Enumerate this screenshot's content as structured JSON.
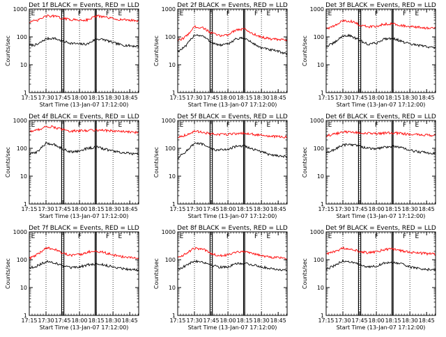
{
  "figure": {
    "background": "#ffffff",
    "axis_color": "#000000",
    "events_color": "#000000",
    "lld_color": "#ff0000"
  },
  "chart_data": [
    {
      "type": "line",
      "title": "Det 1f BLACK = Events, RED = LLD",
      "xlabel": "Start Time (13-Jan-07 17:12:00)",
      "ylabel": "Counts/sec",
      "y_scale": "log",
      "ylim": [
        1,
        1000
      ],
      "y_ticks": [
        "1",
        "10",
        "100",
        "1000"
      ],
      "x_range_min": [
        3,
        101
      ],
      "x_ticks": [
        "17:15",
        "17:30",
        "17:45",
        "18:00",
        "18:15",
        "18:30",
        "18:45"
      ],
      "x_tick_min": [
        3,
        18,
        33,
        48,
        63,
        78,
        93
      ],
      "grid": false,
      "markers": [
        {
          "label": "E",
          "t": 4
        },
        {
          "label": "F",
          "t": 46
        },
        {
          "label": "F",
          "t": 71
        },
        {
          "label": "E",
          "t": 82
        }
      ],
      "dotted_lines_min": [
        18,
        33,
        48,
        63,
        78
      ],
      "solid_pair_lines_min": [
        [
          32,
          34
        ],
        [
          62,
          63
        ]
      ],
      "x_min": [
        3,
        10,
        18,
        25,
        33,
        40,
        48,
        55,
        63,
        70,
        78,
        85,
        93,
        101
      ],
      "series": [
        {
          "name": "Events",
          "color": "#000000",
          "values": [
            50,
            52,
            85,
            90,
            70,
            60,
            55,
            55,
            85,
            80,
            62,
            52,
            48,
            46
          ]
        },
        {
          "name": "LLD",
          "color": "#ff0000",
          "values": [
            350,
            380,
            560,
            560,
            460,
            420,
            400,
            410,
            560,
            520,
            450,
            420,
            400,
            380
          ]
        }
      ]
    },
    {
      "type": "line",
      "title": "Det 2f BLACK = Events, RED = LLD",
      "xlabel": "Start Time (13-Jan-07 17:12:00)",
      "ylabel": "Counts/sec",
      "y_scale": "log",
      "ylim": [
        1,
        1000
      ],
      "y_ticks": [
        "1",
        "10",
        "100",
        "1000"
      ],
      "x_range_min": [
        3,
        101
      ],
      "x_ticks": [
        "17:15",
        "17:30",
        "17:45",
        "18:00",
        "18:15",
        "18:30",
        "18:45"
      ],
      "x_tick_min": [
        3,
        18,
        33,
        48,
        63,
        78,
        93
      ],
      "grid": false,
      "markers": [
        {
          "label": "E",
          "t": 4
        },
        {
          "label": "F",
          "t": 46
        },
        {
          "label": "F",
          "t": 71
        },
        {
          "label": "E",
          "t": 82
        }
      ],
      "dotted_lines_min": [
        18,
        33,
        48,
        63,
        78
      ],
      "solid_pair_lines_min": [
        [
          32,
          34
        ],
        [
          62,
          63
        ]
      ],
      "x_min": [
        3,
        10,
        18,
        25,
        33,
        40,
        48,
        55,
        63,
        70,
        78,
        85,
        93,
        101
      ],
      "series": [
        {
          "name": "Events",
          "color": "#000000",
          "values": [
            30,
            45,
            120,
            110,
            65,
            50,
            55,
            85,
            90,
            60,
            40,
            35,
            30,
            25
          ]
        },
        {
          "name": "LLD",
          "color": "#ff0000",
          "values": [
            70,
            100,
            230,
            220,
            140,
            110,
            120,
            180,
            190,
            130,
            100,
            85,
            80,
            75
          ]
        }
      ]
    },
    {
      "type": "line",
      "title": "Det 3f BLACK = Events, RED = LLD",
      "xlabel": "Start Time (13-Jan-07 17:12:00)",
      "ylabel": "Counts/sec",
      "y_scale": "log",
      "ylim": [
        1,
        1000
      ],
      "y_ticks": [
        "1",
        "10",
        "100",
        "1000"
      ],
      "x_range_min": [
        3,
        101
      ],
      "x_ticks": [
        "17:15",
        "17:30",
        "17:45",
        "18:00",
        "18:15",
        "18:30",
        "18:45"
      ],
      "x_tick_min": [
        3,
        18,
        33,
        48,
        63,
        78,
        93
      ],
      "grid": false,
      "markers": [
        {
          "label": "E",
          "t": 4
        },
        {
          "label": "F",
          "t": 46
        },
        {
          "label": "F",
          "t": 71
        },
        {
          "label": "E",
          "t": 82
        }
      ],
      "dotted_lines_min": [
        18,
        33,
        48,
        63,
        78
      ],
      "solid_pair_lines_min": [
        [
          32,
          34
        ],
        [
          62,
          63
        ]
      ],
      "x_min": [
        3,
        10,
        18,
        25,
        33,
        40,
        48,
        55,
        63,
        70,
        78,
        85,
        93,
        101
      ],
      "series": [
        {
          "name": "Events",
          "color": "#000000",
          "values": [
            45,
            60,
            110,
            110,
            75,
            55,
            60,
            85,
            90,
            70,
            55,
            50,
            45,
            40
          ]
        },
        {
          "name": "LLD",
          "color": "#ff0000",
          "values": [
            200,
            240,
            380,
            370,
            270,
            230,
            240,
            290,
            300,
            260,
            230,
            220,
            210,
            200
          ]
        }
      ]
    },
    {
      "type": "line",
      "title": "Det 4f BLACK = Events, RED = LLD",
      "xlabel": "Start Time (13-Jan-07 17:12:00)",
      "ylabel": "Counts/sec",
      "y_scale": "log",
      "ylim": [
        1,
        1000
      ],
      "y_ticks": [
        "1",
        "10",
        "100",
        "1000"
      ],
      "x_range_min": [
        3,
        101
      ],
      "x_ticks": [
        "17:15",
        "17:30",
        "17:45",
        "18:00",
        "18:15",
        "18:30",
        "18:45"
      ],
      "x_tick_min": [
        3,
        18,
        33,
        48,
        63,
        78,
        93
      ],
      "grid": false,
      "markers": [
        {
          "label": "E",
          "t": 4
        },
        {
          "label": "F",
          "t": 46
        },
        {
          "label": "F",
          "t": 71
        },
        {
          "label": "E",
          "t": 82
        }
      ],
      "dotted_lines_min": [
        18,
        33,
        48,
        63,
        78
      ],
      "solid_pair_lines_min": [
        [
          32,
          34
        ],
        [
          62,
          63
        ]
      ],
      "x_min": [
        3,
        10,
        18,
        25,
        33,
        40,
        48,
        55,
        63,
        70,
        78,
        85,
        93,
        101
      ],
      "series": [
        {
          "name": "Events",
          "color": "#000000",
          "values": [
            60,
            75,
            150,
            140,
            95,
            75,
            80,
            100,
            110,
            95,
            80,
            70,
            65,
            60
          ]
        },
        {
          "name": "LLD",
          "color": "#ff0000",
          "values": [
            400,
            450,
            600,
            580,
            460,
            420,
            420,
            440,
            460,
            440,
            420,
            400,
            380,
            370
          ]
        }
      ]
    },
    {
      "type": "line",
      "title": "Det 5f BLACK = Events, RED = LLD",
      "xlabel": "Start Time (13-Jan-07 17:12:00)",
      "ylabel": "Counts/sec",
      "y_scale": "log",
      "ylim": [
        1,
        1000
      ],
      "y_ticks": [
        "1",
        "10",
        "100",
        "1000"
      ],
      "x_range_min": [
        3,
        101
      ],
      "x_ticks": [
        "17:15",
        "17:30",
        "17:45",
        "18:00",
        "18:15",
        "18:30",
        "18:45"
      ],
      "x_tick_min": [
        3,
        18,
        33,
        48,
        63,
        78,
        93
      ],
      "grid": false,
      "markers": [
        {
          "label": "E",
          "t": 4
        },
        {
          "label": "F",
          "t": 46
        },
        {
          "label": "F",
          "t": 71
        },
        {
          "label": "E",
          "t": 82
        }
      ],
      "dotted_lines_min": [
        18,
        33,
        48,
        63,
        78
      ],
      "solid_pair_lines_min": [
        [
          32,
          34
        ],
        [
          62,
          63
        ]
      ],
      "x_min": [
        3,
        10,
        18,
        25,
        33,
        40,
        48,
        55,
        63,
        70,
        78,
        85,
        93,
        101
      ],
      "series": [
        {
          "name": "Events",
          "color": "#000000",
          "values": [
            45,
            75,
            150,
            140,
            95,
            85,
            95,
            115,
            120,
            95,
            75,
            60,
            55,
            50
          ]
        },
        {
          "name": "LLD",
          "color": "#ff0000",
          "values": [
            250,
            300,
            400,
            390,
            320,
            310,
            320,
            340,
            350,
            320,
            290,
            270,
            260,
            250
          ]
        }
      ]
    },
    {
      "type": "line",
      "title": "Det 6f BLACK = Events, RED = LLD",
      "xlabel": "Start Time (13-Jan-07 17:12:00)",
      "ylabel": "Counts/sec",
      "y_scale": "log",
      "ylim": [
        1,
        1000
      ],
      "y_ticks": [
        "1",
        "10",
        "100",
        "1000"
      ],
      "x_range_min": [
        3,
        101
      ],
      "x_ticks": [
        "17:15",
        "17:30",
        "17:45",
        "18:00",
        "18:15",
        "18:30",
        "18:45"
      ],
      "x_tick_min": [
        3,
        18,
        33,
        48,
        63,
        78,
        93
      ],
      "grid": false,
      "markers": [
        {
          "label": "E",
          "t": 4
        },
        {
          "label": "F",
          "t": 46
        },
        {
          "label": "F",
          "t": 71
        },
        {
          "label": "E",
          "t": 82
        }
      ],
      "dotted_lines_min": [
        18,
        33,
        48,
        63,
        78
      ],
      "solid_pair_lines_min": [
        [
          32,
          34
        ],
        [
          62,
          63
        ]
      ],
      "x_min": [
        3,
        10,
        18,
        25,
        33,
        40,
        48,
        55,
        63,
        70,
        78,
        85,
        93,
        101
      ],
      "series": [
        {
          "name": "Events",
          "color": "#000000",
          "values": [
            65,
            90,
            130,
            140,
            120,
            100,
            95,
            110,
            120,
            105,
            85,
            75,
            70,
            65
          ]
        },
        {
          "name": "LLD",
          "color": "#ff0000",
          "values": [
            280,
            320,
            380,
            390,
            360,
            340,
            330,
            350,
            360,
            340,
            320,
            310,
            300,
            290
          ]
        }
      ]
    },
    {
      "type": "line",
      "title": "Det 7f BLACK = Events, RED = LLD",
      "xlabel": "Start Time (13-Jan-07 17:12:00)",
      "ylabel": "Counts/sec",
      "y_scale": "log",
      "ylim": [
        1,
        1000
      ],
      "y_ticks": [
        "1",
        "10",
        "100",
        "1000"
      ],
      "x_range_min": [
        3,
        101
      ],
      "x_ticks": [
        "17:15",
        "17:30",
        "17:45",
        "18:00",
        "18:15",
        "18:30",
        "18:45"
      ],
      "x_tick_min": [
        3,
        18,
        33,
        48,
        63,
        78,
        93
      ],
      "grid": false,
      "markers": [
        {
          "label": "E",
          "t": 4
        },
        {
          "label": "F",
          "t": 46
        },
        {
          "label": "F",
          "t": 71
        },
        {
          "label": "E",
          "t": 82
        }
      ],
      "dotted_lines_min": [
        18,
        33,
        48,
        63,
        78
      ],
      "solid_pair_lines_min": [
        [
          32,
          34
        ],
        [
          62,
          63
        ]
      ],
      "x_min": [
        3,
        10,
        18,
        25,
        33,
        40,
        48,
        55,
        63,
        70,
        78,
        85,
        93,
        101
      ],
      "series": [
        {
          "name": "Events",
          "color": "#000000",
          "values": [
            50,
            60,
            85,
            80,
            60,
            50,
            55,
            65,
            70,
            65,
            55,
            50,
            45,
            42
          ]
        },
        {
          "name": "LLD",
          "color": "#ff0000",
          "values": [
            110,
            150,
            260,
            250,
            170,
            140,
            150,
            190,
            200,
            180,
            150,
            130,
            120,
            110
          ]
        }
      ]
    },
    {
      "type": "line",
      "title": "Det 8f BLACK = Events, RED = LLD",
      "xlabel": "Start Time (13-Jan-07 17:12:00)",
      "ylabel": "Counts/sec",
      "y_scale": "log",
      "ylim": [
        1,
        1000
      ],
      "y_ticks": [
        "1",
        "10",
        "100",
        "1000"
      ],
      "x_range_min": [
        3,
        101
      ],
      "x_ticks": [
        "17:15",
        "17:30",
        "17:45",
        "18:00",
        "18:15",
        "18:30",
        "18:45"
      ],
      "x_tick_min": [
        3,
        18,
        33,
        48,
        63,
        78,
        93
      ],
      "grid": false,
      "markers": [
        {
          "label": "E",
          "t": 4
        },
        {
          "label": "F",
          "t": 46
        },
        {
          "label": "F",
          "t": 71
        },
        {
          "label": "E",
          "t": 82
        }
      ],
      "dotted_lines_min": [
        18,
        33,
        48,
        63,
        78
      ],
      "solid_pair_lines_min": [
        [
          32,
          34
        ],
        [
          62,
          63
        ]
      ],
      "x_min": [
        3,
        10,
        18,
        25,
        33,
        40,
        48,
        55,
        63,
        70,
        78,
        85,
        93,
        101
      ],
      "series": [
        {
          "name": "Events",
          "color": "#000000",
          "values": [
            45,
            60,
            90,
            85,
            65,
            55,
            55,
            70,
            75,
            65,
            55,
            50,
            45,
            42
          ]
        },
        {
          "name": "LLD",
          "color": "#ff0000",
          "values": [
            120,
            160,
            260,
            240,
            170,
            140,
            150,
            190,
            200,
            170,
            140,
            125,
            120,
            110
          ]
        }
      ]
    },
    {
      "type": "line",
      "title": "Det 9f BLACK = Events, RED = LLD",
      "xlabel": "Start Time (13-Jan-07 17:12:00)",
      "ylabel": "Counts/sec",
      "y_scale": "log",
      "ylim": [
        1,
        1000
      ],
      "y_ticks": [
        "1",
        "10",
        "100",
        "1000"
      ],
      "x_range_min": [
        3,
        101
      ],
      "x_ticks": [
        "17:15",
        "17:30",
        "17:45",
        "18:00",
        "18:15",
        "18:30",
        "18:45"
      ],
      "x_tick_min": [
        3,
        18,
        33,
        48,
        63,
        78,
        93
      ],
      "grid": false,
      "markers": [
        {
          "label": "E",
          "t": 4
        },
        {
          "label": "F",
          "t": 46
        },
        {
          "label": "F",
          "t": 71
        },
        {
          "label": "E",
          "t": 82
        }
      ],
      "dotted_lines_min": [
        18,
        33,
        48,
        63,
        78
      ],
      "solid_pair_lines_min": [
        [
          32,
          34
        ],
        [
          62,
          63
        ]
      ],
      "x_min": [
        3,
        10,
        18,
        25,
        33,
        40,
        48,
        55,
        63,
        70,
        78,
        85,
        93,
        101
      ],
      "series": [
        {
          "name": "Events",
          "color": "#000000",
          "values": [
            45,
            60,
            90,
            85,
            65,
            55,
            60,
            75,
            80,
            70,
            55,
            50,
            45,
            42
          ]
        },
        {
          "name": "LLD",
          "color": "#ff0000",
          "values": [
            160,
            190,
            260,
            250,
            200,
            180,
            190,
            230,
            240,
            210,
            185,
            175,
            165,
            160
          ]
        }
      ]
    }
  ]
}
